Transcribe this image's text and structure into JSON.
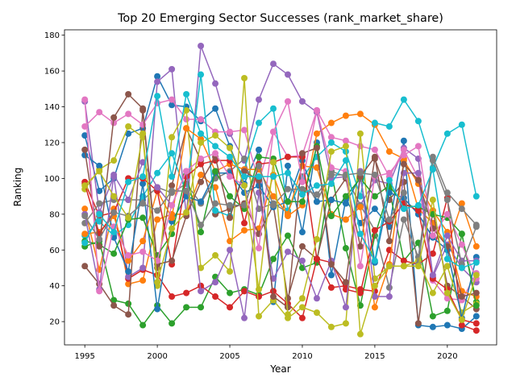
{
  "chart_data": {
    "type": "line",
    "title": "Top 20 Emerging Sector Successes (rank_market_share)",
    "xlabel": "Year",
    "ylabel": "Ranking",
    "xlim": [
      1993.6,
      2023.4
    ],
    "ylim": [
      7,
      183
    ],
    "xticks": [
      1995,
      2000,
      2005,
      2010,
      2015,
      2020
    ],
    "yticks": [
      20,
      40,
      60,
      80,
      100,
      120,
      140,
      160,
      180
    ],
    "grid": false,
    "legend": "none",
    "x": [
      1995,
      1996,
      1997,
      1998,
      1999,
      2000,
      2001,
      2002,
      2003,
      2004,
      2005,
      2006,
      2007,
      2008,
      2009,
      2010,
      2011,
      2012,
      2013,
      2014,
      2015,
      2016,
      2017,
      2018,
      2019,
      2020,
      2021,
      2022
    ],
    "series": [
      {
        "color": "#1f77b4",
        "values": [
          124,
          93,
          100,
          125,
          128,
          157,
          141,
          140,
          132,
          139,
          118,
          97,
          116,
          31,
          107,
          70,
          120,
          46,
          88,
          75,
          83,
          73,
          121,
          18,
          17,
          18,
          16,
          23
        ]
      },
      {
        "color": "#ff7f0e",
        "values": [
          83,
          49,
          83,
          41,
          43,
          77,
          80,
          80,
          102,
          95,
          65,
          71,
          72,
          102,
          79,
          85,
          125,
          131,
          135,
          136,
          130,
          115,
          111,
          83,
          75,
          62,
          86,
          62
        ]
      },
      {
        "color": "#2ca02c",
        "values": [
          62,
          65,
          32,
          30,
          18,
          29,
          19,
          28,
          28,
          45,
          36,
          38,
          35,
          55,
          68,
          50,
          53,
          104,
          61,
          29,
          68,
          94,
          54,
          64,
          23,
          26,
          69,
          31
        ]
      },
      {
        "color": "#d62728",
        "values": [
          98,
          79,
          81,
          44,
          49,
          46,
          34,
          36,
          40,
          34,
          28,
          37,
          34,
          37,
          30,
          22,
          55,
          39,
          40,
          38,
          37,
          60,
          54,
          52,
          58,
          89,
          18,
          15
        ]
      },
      {
        "color": "#9467bd",
        "values": [
          143,
          81,
          101,
          45,
          50,
          154,
          161,
          79,
          174,
          153,
          125,
          110,
          144,
          164,
          158,
          143,
          137,
          100,
          101,
          85,
          99,
          97,
          117,
          111,
          45,
          63,
          50,
          42
        ]
      },
      {
        "color": "#8c564b",
        "values": [
          51,
          41,
          29,
          24,
          138,
          50,
          96,
          128,
          110,
          80,
          83,
          86,
          69,
          85,
          33,
          62,
          55,
          88,
          100,
          62,
          111,
          88,
          98,
          19,
          82,
          40,
          34,
          27
        ]
      },
      {
        "color": "#e377c2",
        "values": [
          129,
          137,
          131,
          136,
          130,
          142,
          144,
          133,
          133,
          126,
          126,
          127,
          98,
          126,
          112,
          113,
          138,
          123,
          121,
          118,
          116,
          101,
          116,
          100,
          43,
          33,
          32,
          47
        ]
      },
      {
        "color": "#7f7f7f",
        "values": [
          75,
          86,
          88,
          88,
          88,
          95,
          92,
          97,
          86,
          100,
          104,
          111,
          83,
          86,
          81,
          101,
          87,
          104,
          101,
          85,
          71,
          39,
          77,
          56,
          112,
          92,
          83,
          74
        ]
      },
      {
        "color": "#bcbd22",
        "values": [
          94,
          105,
          110,
          129,
          123,
          40,
          123,
          138,
          50,
          57,
          48,
          156,
          23,
          32,
          22,
          28,
          25,
          17,
          19,
          125,
          44,
          51,
          51,
          54,
          36,
          51,
          25,
          30
        ]
      },
      {
        "color": "#17becf",
        "values": [
          68,
          76,
          68,
          74,
          90,
          103,
          114,
          92,
          158,
          82,
          79,
          105,
          131,
          139,
          82,
          100,
          112,
          120,
          115,
          90,
          131,
          129,
          144,
          132,
          106,
          125,
          130,
          90
        ]
      },
      {
        "color": "#1f77b4",
        "values": [
          113,
          107,
          67,
          48,
          97,
          27,
          76,
          90,
          87,
          103,
          103,
          92,
          96,
          84,
          87,
          110,
          87,
          88,
          86,
          101,
          53,
          92,
          89,
          80,
          67,
          60,
          22,
          56
        ]
      },
      {
        "color": "#ff7f0e",
        "values": [
          69,
          70,
          79,
          54,
          65,
          93,
          78,
          128,
          122,
          104,
          108,
          105,
          105,
          90,
          80,
          107,
          106,
          80,
          77,
          84,
          28,
          52,
          110,
          97,
          82,
          70,
          37,
          34
        ]
      },
      {
        "color": "#2ca02c",
        "values": [
          65,
          63,
          58,
          77,
          78,
          57,
          69,
          102,
          70,
          104,
          90,
          83,
          112,
          111,
          87,
          87,
          118,
          79,
          90,
          100,
          90,
          96,
          85,
          84,
          80,
          78,
          69,
          29
        ]
      },
      {
        "color": "#d62728",
        "values": [
          97,
          69,
          81,
          100,
          100,
          93,
          52,
          101,
          108,
          110,
          110,
          75,
          108,
          109,
          112,
          112,
          55,
          53,
          38,
          36,
          71,
          76,
          86,
          82,
          44,
          38,
          21,
          19
        ]
      },
      {
        "color": "#9467bd",
        "values": [
          80,
          38,
          102,
          88,
          109,
          95,
          85,
          104,
          37,
          42,
          60,
          22,
          92,
          44,
          59,
          54,
          33,
          54,
          28,
          104,
          34,
          34,
          103,
          103,
          46,
          68,
          54,
          54
        ]
      },
      {
        "color": "#8c564b",
        "values": [
          116,
          62,
          134,
          147,
          139,
          52,
          54,
          79,
          98,
          112,
          78,
          104,
          99,
          34,
          28,
          114,
          117,
          52,
          42,
          101,
          112,
          65,
          108,
          99,
          72,
          62,
          34,
          36
        ]
      },
      {
        "color": "#e377c2",
        "values": [
          144,
          37,
          73,
          57,
          59,
          54,
          85,
          104,
          111,
          114,
          101,
          96,
          61,
          126,
          143,
          98,
          138,
          106,
          104,
          51,
          101,
          103,
          113,
          118,
          68,
          80,
          63,
          44
        ]
      },
      {
        "color": "#7f7f7f",
        "values": [
          79,
          66,
          81,
          79,
          86,
          82,
          93,
          93,
          74,
          86,
          85,
          85,
          107,
          85,
          94,
          94,
          91,
          102,
          102,
          103,
          102,
          77,
          92,
          52,
          110,
          88,
          52,
          73
        ]
      },
      {
        "color": "#bcbd22",
        "values": [
          96,
          104,
          90,
          78,
          125,
          42,
          72,
          81,
          120,
          124,
          117,
          96,
          38,
          109,
          24,
          33,
          66,
          115,
          118,
          13,
          40,
          51,
          51,
          51,
          88,
          36,
          21,
          46
        ]
      },
      {
        "color": "#17becf",
        "values": [
          64,
          80,
          70,
          98,
          101,
          146,
          101,
          147,
          125,
          118,
          112,
          101,
          101,
          101,
          103,
          91,
          96,
          97,
          110,
          69,
          54,
          99,
          83,
          85,
          105,
          55,
          50,
          53
        ]
      }
    ]
  }
}
